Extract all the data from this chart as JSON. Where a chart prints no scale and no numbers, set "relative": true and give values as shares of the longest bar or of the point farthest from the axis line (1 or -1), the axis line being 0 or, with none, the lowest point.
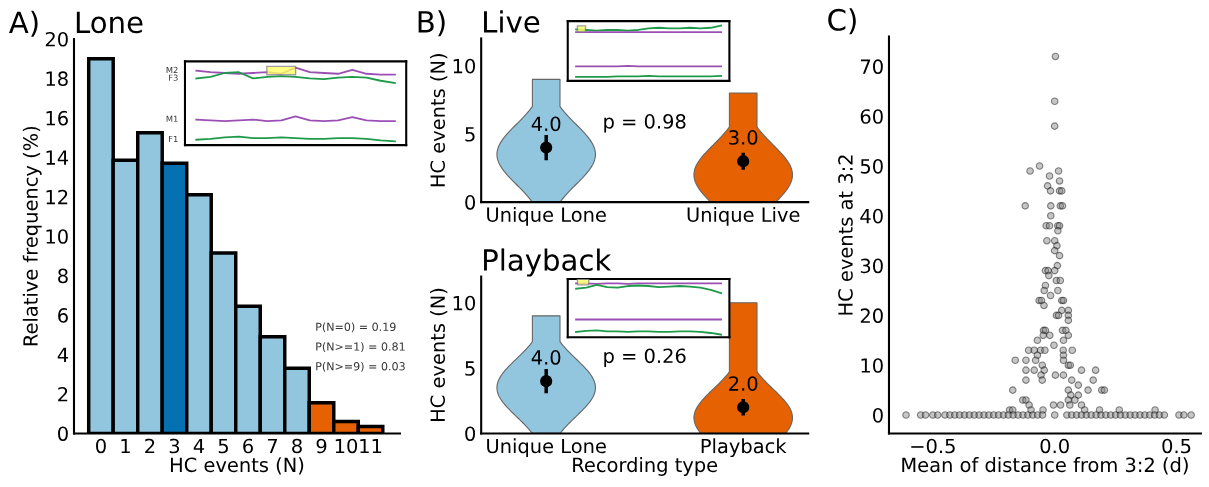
{
  "chart_data": [
    {
      "type": "bar",
      "title": "Lone",
      "xlabel": "HC events (N)",
      "ylabel": "Relative frequency (%)",
      "categories": [
        "0",
        "1",
        "2",
        "3",
        "4",
        "5",
        "6",
        "7",
        "8",
        "9",
        "10",
        "11"
      ],
      "values": [
        19.0,
        13.85,
        15.25,
        13.7,
        12.1,
        9.15,
        6.45,
        4.9,
        3.3,
        1.55,
        0.6,
        0.35
      ],
      "colors": [
        "#92c5de",
        "#92c5de",
        "#92c5de",
        "#0571b0",
        "#92c5de",
        "#92c5de",
        "#92c5de",
        "#92c5de",
        "#92c5de",
        "#e66101",
        "#e66101",
        "#e66101"
      ],
      "ylim": [
        0,
        20
      ],
      "yticks": [
        0,
        2,
        4,
        6,
        8,
        10,
        12,
        14,
        16,
        18,
        20
      ],
      "annotations": [
        "A)",
        "P(N=0) = 0.19",
        "P(N>=1) = 0.81",
        "P(N>=9) = 0.03"
      ]
    },
    {
      "type": "line",
      "relative": true,
      "categories": [
        null,
        null,
        null,
        null,
        null,
        null,
        null,
        null,
        null,
        null,
        null,
        null,
        null,
        null,
        null
      ],
      "series": [
        {
          "name": "M2",
          "color": "#9b4fb5",
          "values": [
            0.96,
            0.94,
            0.93,
            0.92,
            0.93,
            0.94,
            0.92,
            1.0,
            0.94,
            0.93,
            0.92,
            0.97,
            0.92,
            0.91,
            0.91
          ]
        },
        {
          "name": "F3",
          "color": "#1e9a4a",
          "values": [
            0.86,
            0.88,
            0.93,
            0.94,
            0.86,
            0.88,
            0.89,
            0.88,
            0.86,
            0.85,
            0.87,
            0.88,
            0.87,
            0.83,
            0.8
          ]
        },
        {
          "name": "M1",
          "color": "#9b4fb5",
          "values": [
            0.33,
            0.32,
            0.31,
            0.32,
            0.33,
            0.31,
            0.32,
            0.37,
            0.32,
            0.31,
            0.32,
            0.36,
            0.32,
            0.31,
            0.31
          ]
        },
        {
          "name": "F1",
          "color": "#1e9a4a",
          "values": [
            0.07,
            0.08,
            0.1,
            0.11,
            0.09,
            0.09,
            0.1,
            0.09,
            0.08,
            0.08,
            0.09,
            0.09,
            0.08,
            0.06,
            0.05
          ]
        }
      ]
    },
    {
      "type": "scatter",
      "title": "Live",
      "ylabel": "HC events (N)",
      "categories": [
        "Unique Lone",
        "Unique Live"
      ],
      "ylim": [
        0,
        12
      ],
      "yticks": [
        0,
        5,
        10
      ],
      "series": [
        {
          "type": "scatter",
          "color": "#000000",
          "values": [
            4.0,
            3.0
          ],
          "errors": [
            [
              3.2,
              4.8
            ],
            [
              2.5,
              3.5
            ]
          ],
          "value_labels": [
            "4.0",
            "3.0"
          ]
        }
      ],
      "annotations": [
        "B)",
        "p = 0.98"
      ]
    },
    {
      "type": "line",
      "relative": true,
      "categories": [
        null,
        null,
        null,
        null,
        null,
        null,
        null,
        null,
        null,
        null,
        null,
        null,
        null,
        null,
        null
      ],
      "series": [
        {
          "color": "#1e9a4a",
          "values": [
            0.93,
            0.92,
            0.91,
            0.92,
            0.92,
            0.91,
            0.92,
            0.95,
            0.96,
            0.95,
            0.95,
            0.96,
            0.95,
            0.96,
            1.0
          ]
        },
        {
          "color": "#9b4fb5",
          "values": [
            0.88,
            0.88,
            0.88,
            0.88,
            0.88,
            0.88,
            0.88,
            0.88,
            0.88,
            0.88,
            0.88,
            0.88,
            0.88,
            0.88,
            0.88
          ]
        },
        {
          "color": "#9b4fb5",
          "values": [
            0.26,
            0.26,
            0.26,
            0.26,
            0.26,
            0.27,
            0.26,
            0.26,
            0.26,
            0.26,
            0.26,
            0.26,
            0.26,
            0.26,
            0.26
          ]
        },
        {
          "color": "#1e9a4a",
          "values": [
            0.07,
            0.07,
            0.07,
            0.07,
            0.08,
            0.08,
            0.08,
            0.09,
            0.08,
            0.08,
            0.08,
            0.08,
            0.08,
            0.08,
            0.09
          ]
        }
      ]
    },
    {
      "type": "scatter",
      "title": "Playback",
      "xlabel": "Recording type",
      "ylabel": "HC events (N)",
      "categories": [
        "Unique Lone",
        "Playback"
      ],
      "ylim": [
        0,
        12
      ],
      "yticks": [
        0,
        5,
        10
      ],
      "series": [
        {
          "type": "scatter",
          "color": "#000000",
          "values": [
            4.0,
            2.0
          ],
          "errors": [
            [
              3.2,
              4.8
            ],
            [
              1.5,
              2.5
            ]
          ],
          "value_labels": [
            "4.0",
            "2.0"
          ]
        }
      ],
      "annotations": [
        "p = 0.26"
      ]
    },
    {
      "type": "line",
      "relative": true,
      "categories": [
        null,
        null,
        null,
        null,
        null,
        null,
        null,
        null,
        null,
        null,
        null,
        null,
        null,
        null,
        null
      ],
      "series": [
        {
          "color": "#9b4fb5",
          "values": [
            1.0,
            1.0,
            0.99,
            1.0,
            1.0,
            0.99,
            1.0,
            1.0,
            1.0,
            1.0,
            1.0,
            1.0,
            1.0,
            1.0,
            1.0
          ]
        },
        {
          "color": "#1e9a4a",
          "values": [
            0.9,
            0.92,
            0.97,
            0.93,
            0.92,
            0.95,
            0.96,
            0.95,
            0.93,
            0.94,
            0.95,
            0.94,
            0.92,
            0.88,
            0.82
          ]
        },
        {
          "color": "#9b4fb5",
          "values": [
            0.33,
            0.33,
            0.33,
            0.33,
            0.33,
            0.33,
            0.33,
            0.33,
            0.33,
            0.33,
            0.33,
            0.33,
            0.33,
            0.33,
            0.33
          ]
        },
        {
          "color": "#1e9a4a",
          "values": [
            0.1,
            0.12,
            0.13,
            0.11,
            0.11,
            0.1,
            0.11,
            0.11,
            0.1,
            0.1,
            0.11,
            0.11,
            0.1,
            0.08,
            0.05
          ]
        }
      ]
    },
    {
      "type": "scatter",
      "xlabel": "Mean of distance from 3:2 (d)",
      "ylabel": "HC events at 3:2",
      "marker": "circle",
      "xlim": [
        -0.68,
        0.6
      ],
      "ylim": [
        -3.7,
        76
      ],
      "xticks": [
        {
          "value": -0.5,
          "label": "−0.5"
        },
        {
          "value": 0.0,
          "label": "0.0"
        },
        {
          "value": 0.5,
          "label": "0.5"
        }
      ],
      "yticks": [
        0,
        10,
        20,
        30,
        40,
        50,
        60,
        70
      ],
      "annotations": [
        "C)"
      ],
      "series": [
        {
          "color": "#808080",
          "x": [
            0.003,
            0.0,
            0.0,
            -0.062,
            -0.101,
            0.016,
            -0.021,
            0.02,
            -0.029,
            -0.017,
            0.02,
            0.029,
            -0.121,
            -0.016,
            0.023,
            0.032,
            -0.016,
            -0.035,
            -0.021,
            0.013,
            0.02,
            0.013,
            -0.032,
            0.0,
            0.009,
            0.0,
            0.02,
            0.011,
            -0.038,
            -0.027,
            0.0,
            -0.024,
            0.007,
            0.023,
            -0.038,
            -0.043,
            0.013,
            -0.017,
            -0.064,
            -0.054,
            0.029,
            0.036,
            -0.044,
            0.029,
            0.056,
            0.007,
            0.016,
            0.056,
            0.056,
            -0.046,
            -0.038,
            0.032,
            0.046,
            -0.02,
            0.056,
            -0.047,
            -0.071,
            0.036,
            -0.003,
            -0.107,
            -0.084,
            -0.058,
            -0.04,
            0.035,
            0.072,
            -0.071,
            0.036,
            -0.162,
            -0.118,
            -0.078,
            0.036,
            -0.051,
            0.056,
            0.064,
            0.11,
            0.168,
            -0.118,
            -0.084,
            -0.043,
            -0.056,
            0.003,
            0.036,
            -0.118,
            -0.051,
            0.07,
            0.158,
            0.097,
            -0.172,
            0.056,
            0.137,
            0.193,
            0.204,
            0.066,
            0.097,
            -0.131,
            -0.118,
            0.056,
            0.083,
            -0.105,
            -0.005,
            0.024,
            0.062,
            0.11,
            -0.185,
            -0.172,
            -0.097,
            -0.048,
            0.123,
            0.184,
            0.265,
            0.412,
            -0.61,
            -0.55,
            -0.53,
            -0.5,
            -0.48,
            -0.45,
            -0.43,
            -0.41,
            -0.39,
            -0.37,
            -0.35,
            -0.33,
            -0.31,
            -0.29,
            -0.27,
            -0.25,
            -0.23,
            -0.21,
            -0.19,
            -0.17,
            -0.15,
            -0.13,
            -0.11,
            -0.09,
            -0.07,
            -0.05,
            0.0,
            0.05,
            0.07,
            0.09,
            0.11,
            0.13,
            0.15,
            0.17,
            0.19,
            0.21,
            0.23,
            0.25,
            0.27,
            0.29,
            0.31,
            0.33,
            0.35,
            0.37,
            0.39,
            0.41,
            0.43,
            0.45,
            0.51,
            0.53,
            0.56
          ],
          "values": [
            72,
            63,
            58,
            50,
            49,
            49,
            48,
            47,
            46,
            45,
            45,
            45,
            42,
            42,
            42,
            42,
            40,
            38,
            38,
            38,
            38,
            37,
            35,
            35,
            34,
            33,
            32,
            30,
            29,
            29,
            29,
            28,
            27,
            27,
            26,
            25,
            25,
            24,
            23,
            23,
            23,
            23,
            22,
            21,
            21,
            20,
            20,
            20,
            19,
            17,
            17,
            17,
            17,
            16,
            16,
            16,
            15,
            15,
            14,
            13,
            13,
            13,
            13,
            13,
            13,
            12,
            12,
            11,
            11,
            11,
            11,
            10,
            10,
            10,
            9,
            9,
            9,
            9,
            9,
            8,
            8,
            8,
            7,
            7,
            7,
            7,
            6,
            5,
            5,
            5,
            5,
            5,
            4,
            4,
            3,
            3,
            3,
            3,
            2,
            2,
            2,
            2,
            2,
            1,
            1,
            1,
            1,
            1,
            1,
            1,
            1,
            0,
            0,
            0,
            0,
            0,
            0,
            0,
            0,
            0,
            0,
            0,
            0,
            0,
            0,
            0,
            0,
            0,
            0,
            0,
            0,
            0,
            0,
            0,
            0,
            0,
            0,
            0,
            0,
            0,
            0,
            0,
            0,
            0,
            0,
            0,
            0,
            0,
            0,
            0,
            0,
            0,
            0,
            0,
            0,
            0,
            0,
            0,
            0,
            0,
            0,
            0
          ]
        }
      ]
    }
  ]
}
